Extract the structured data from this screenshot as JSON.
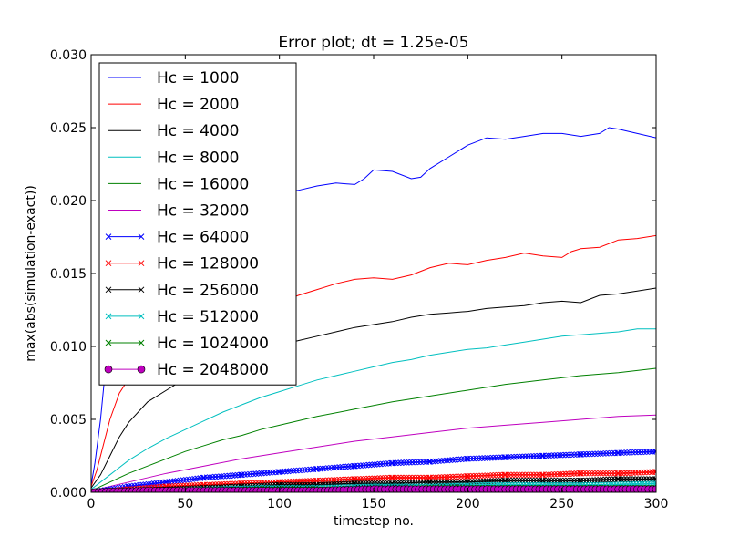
{
  "chart_data": {
    "type": "line",
    "title": "Error plot; dt = 1.25e-05",
    "xlabel": "timestep no.",
    "ylabel": "max(abs(simulation-exact))",
    "xlim": [
      0,
      300
    ],
    "ylim": [
      0,
      0.03
    ],
    "x_ticks": [
      "0",
      "50",
      "100",
      "150",
      "200",
      "250",
      "300"
    ],
    "y_ticks": [
      "0.000",
      "0.005",
      "0.010",
      "0.015",
      "0.020",
      "0.025",
      "0.030"
    ],
    "grid": false,
    "legend_position": "upper-left",
    "series": [
      {
        "name": "Hc = 1000",
        "color": "#0000ff",
        "marker": "none",
        "points": [
          [
            0,
            0.0005
          ],
          [
            2,
            0.002
          ],
          [
            5,
            0.005
          ],
          [
            8,
            0.009
          ],
          [
            10,
            0.012
          ],
          [
            15,
            0.014
          ],
          [
            20,
            0.015
          ],
          [
            30,
            0.0165
          ],
          [
            40,
            0.0175
          ],
          [
            50,
            0.0185
          ],
          [
            60,
            0.019
          ],
          [
            70,
            0.0195
          ],
          [
            80,
            0.0198
          ],
          [
            90,
            0.0202
          ],
          [
            100,
            0.0205
          ],
          [
            110,
            0.0207
          ],
          [
            120,
            0.021
          ],
          [
            130,
            0.0212
          ],
          [
            140,
            0.0211
          ],
          [
            145,
            0.0215
          ],
          [
            150,
            0.0221
          ],
          [
            160,
            0.022
          ],
          [
            170,
            0.0215
          ],
          [
            175,
            0.0216
          ],
          [
            180,
            0.0222
          ],
          [
            190,
            0.023
          ],
          [
            200,
            0.0238
          ],
          [
            210,
            0.0243
          ],
          [
            220,
            0.0242
          ],
          [
            230,
            0.0244
          ],
          [
            240,
            0.0246
          ],
          [
            250,
            0.0246
          ],
          [
            260,
            0.0244
          ],
          [
            270,
            0.0246
          ],
          [
            275,
            0.025
          ],
          [
            280,
            0.0249
          ],
          [
            290,
            0.0246
          ],
          [
            300,
            0.0243
          ]
        ]
      },
      {
        "name": "Hc = 2000",
        "color": "#ff0000",
        "marker": "none",
        "points": [
          [
            0,
            0.0004
          ],
          [
            3,
            0.0015
          ],
          [
            6,
            0.003
          ],
          [
            10,
            0.005
          ],
          [
            15,
            0.0068
          ],
          [
            20,
            0.0078
          ],
          [
            30,
            0.0092
          ],
          [
            40,
            0.0102
          ],
          [
            50,
            0.011
          ],
          [
            60,
            0.0115
          ],
          [
            70,
            0.012
          ],
          [
            80,
            0.0125
          ],
          [
            90,
            0.0128
          ],
          [
            100,
            0.013
          ],
          [
            110,
            0.0135
          ],
          [
            120,
            0.0139
          ],
          [
            130,
            0.0143
          ],
          [
            140,
            0.0146
          ],
          [
            150,
            0.0147
          ],
          [
            160,
            0.0146
          ],
          [
            170,
            0.0149
          ],
          [
            180,
            0.0154
          ],
          [
            190,
            0.0157
          ],
          [
            200,
            0.0156
          ],
          [
            210,
            0.0159
          ],
          [
            220,
            0.0161
          ],
          [
            230,
            0.0164
          ],
          [
            240,
            0.0162
          ],
          [
            250,
            0.0161
          ],
          [
            255,
            0.0165
          ],
          [
            260,
            0.0167
          ],
          [
            270,
            0.0168
          ],
          [
            280,
            0.0173
          ],
          [
            290,
            0.0174
          ],
          [
            300,
            0.0176
          ]
        ]
      },
      {
        "name": "Hc = 4000",
        "color": "#000000",
        "marker": "none",
        "points": [
          [
            0,
            0.0003
          ],
          [
            5,
            0.0012
          ],
          [
            10,
            0.0025
          ],
          [
            15,
            0.0038
          ],
          [
            20,
            0.0048
          ],
          [
            30,
            0.0062
          ],
          [
            40,
            0.007
          ],
          [
            50,
            0.0078
          ],
          [
            60,
            0.0085
          ],
          [
            70,
            0.009
          ],
          [
            80,
            0.0095
          ],
          [
            90,
            0.0098
          ],
          [
            100,
            0.0101
          ],
          [
            110,
            0.0104
          ],
          [
            120,
            0.0107
          ],
          [
            130,
            0.011
          ],
          [
            140,
            0.0113
          ],
          [
            150,
            0.0115
          ],
          [
            160,
            0.0117
          ],
          [
            170,
            0.012
          ],
          [
            180,
            0.0122
          ],
          [
            190,
            0.0123
          ],
          [
            200,
            0.0124
          ],
          [
            210,
            0.0126
          ],
          [
            220,
            0.0127
          ],
          [
            230,
            0.0128
          ],
          [
            240,
            0.013
          ],
          [
            250,
            0.0131
          ],
          [
            260,
            0.013
          ],
          [
            270,
            0.0135
          ],
          [
            280,
            0.0136
          ],
          [
            290,
            0.0138
          ],
          [
            300,
            0.014
          ]
        ]
      },
      {
        "name": "Hc = 8000",
        "color": "#00bfbf",
        "marker": "none",
        "points": [
          [
            0,
            0.0002
          ],
          [
            10,
            0.0012
          ],
          [
            20,
            0.0022
          ],
          [
            30,
            0.003
          ],
          [
            40,
            0.0037
          ],
          [
            50,
            0.0043
          ],
          [
            60,
            0.0049
          ],
          [
            70,
            0.0055
          ],
          [
            80,
            0.006
          ],
          [
            90,
            0.0065
          ],
          [
            100,
            0.0069
          ],
          [
            110,
            0.0073
          ],
          [
            120,
            0.0077
          ],
          [
            130,
            0.008
          ],
          [
            140,
            0.0083
          ],
          [
            150,
            0.0086
          ],
          [
            160,
            0.0089
          ],
          [
            170,
            0.0091
          ],
          [
            180,
            0.0094
          ],
          [
            190,
            0.0096
          ],
          [
            200,
            0.0098
          ],
          [
            210,
            0.0099
          ],
          [
            220,
            0.0101
          ],
          [
            230,
            0.0103
          ],
          [
            240,
            0.0105
          ],
          [
            250,
            0.0107
          ],
          [
            260,
            0.0108
          ],
          [
            270,
            0.0109
          ],
          [
            280,
            0.011
          ],
          [
            290,
            0.0112
          ],
          [
            300,
            0.0112
          ]
        ]
      },
      {
        "name": "Hc = 16000",
        "color": "#008000",
        "marker": "none",
        "points": [
          [
            0,
            0.0001
          ],
          [
            10,
            0.0007
          ],
          [
            20,
            0.0013
          ],
          [
            30,
            0.0018
          ],
          [
            40,
            0.0023
          ],
          [
            50,
            0.0028
          ],
          [
            60,
            0.0032
          ],
          [
            70,
            0.0036
          ],
          [
            80,
            0.0039
          ],
          [
            90,
            0.0043
          ],
          [
            100,
            0.0046
          ],
          [
            120,
            0.0052
          ],
          [
            140,
            0.0057
          ],
          [
            160,
            0.0062
          ],
          [
            180,
            0.0066
          ],
          [
            200,
            0.007
          ],
          [
            220,
            0.0074
          ],
          [
            240,
            0.0077
          ],
          [
            260,
            0.008
          ],
          [
            280,
            0.0082
          ],
          [
            300,
            0.0085
          ]
        ]
      },
      {
        "name": "Hc = 32000",
        "color": "#bf00bf",
        "marker": "none",
        "points": [
          [
            0,
            0.0001
          ],
          [
            10,
            0.0004
          ],
          [
            20,
            0.0007
          ],
          [
            40,
            0.0013
          ],
          [
            60,
            0.0018
          ],
          [
            80,
            0.0023
          ],
          [
            100,
            0.0027
          ],
          [
            120,
            0.0031
          ],
          [
            140,
            0.0035
          ],
          [
            160,
            0.0038
          ],
          [
            180,
            0.0041
          ],
          [
            200,
            0.0044
          ],
          [
            220,
            0.0046
          ],
          [
            240,
            0.0048
          ],
          [
            260,
            0.005
          ],
          [
            280,
            0.0052
          ],
          [
            300,
            0.0053
          ]
        ]
      },
      {
        "name": "Hc = 64000",
        "color": "#0000ff",
        "marker": "x",
        "points": [
          [
            0,
            0.0
          ],
          [
            20,
            0.0004
          ],
          [
            40,
            0.0007
          ],
          [
            60,
            0.001
          ],
          [
            80,
            0.0012
          ],
          [
            100,
            0.0014
          ],
          [
            120,
            0.0016
          ],
          [
            140,
            0.0018
          ],
          [
            160,
            0.002
          ],
          [
            180,
            0.0021
          ],
          [
            200,
            0.0023
          ],
          [
            220,
            0.0024
          ],
          [
            240,
            0.0025
          ],
          [
            260,
            0.0026
          ],
          [
            280,
            0.0027
          ],
          [
            300,
            0.0028
          ]
        ]
      },
      {
        "name": "Hc = 128000",
        "color": "#ff0000",
        "marker": "x",
        "points": [
          [
            0,
            0.0
          ],
          [
            20,
            0.0002
          ],
          [
            40,
            0.0004
          ],
          [
            60,
            0.0005
          ],
          [
            80,
            0.0006
          ],
          [
            100,
            0.0007
          ],
          [
            120,
            0.0008
          ],
          [
            140,
            0.0009
          ],
          [
            160,
            0.001
          ],
          [
            180,
            0.001
          ],
          [
            200,
            0.0011
          ],
          [
            220,
            0.0012
          ],
          [
            240,
            0.0012
          ],
          [
            260,
            0.0013
          ],
          [
            280,
            0.0013
          ],
          [
            300,
            0.0014
          ]
        ]
      },
      {
        "name": "Hc = 256000",
        "color": "#000000",
        "marker": "x",
        "points": [
          [
            0,
            0.0
          ],
          [
            20,
            0.0001
          ],
          [
            40,
            0.0002
          ],
          [
            60,
            0.0003
          ],
          [
            80,
            0.0004
          ],
          [
            100,
            0.0005
          ],
          [
            120,
            0.0005
          ],
          [
            140,
            0.0006
          ],
          [
            160,
            0.0006
          ],
          [
            180,
            0.0007
          ],
          [
            200,
            0.0007
          ],
          [
            220,
            0.0008
          ],
          [
            240,
            0.0008
          ],
          [
            260,
            0.0008
          ],
          [
            280,
            0.0009
          ],
          [
            300,
            0.0009
          ]
        ]
      },
      {
        "name": "Hc = 512000",
        "color": "#00bfbf",
        "marker": "x",
        "points": [
          [
            0,
            0.0
          ],
          [
            30,
            0.0001
          ],
          [
            60,
            0.0002
          ],
          [
            90,
            0.0003
          ],
          [
            120,
            0.0003
          ],
          [
            150,
            0.0004
          ],
          [
            180,
            0.0004
          ],
          [
            210,
            0.0005
          ],
          [
            240,
            0.0005
          ],
          [
            270,
            0.0005
          ],
          [
            300,
            0.0006
          ]
        ]
      },
      {
        "name": "Hc = 1024000",
        "color": "#008000",
        "marker": "x",
        "points": [
          [
            0,
            0.0
          ],
          [
            30,
            0.0001
          ],
          [
            60,
            0.0001
          ],
          [
            90,
            0.0002
          ],
          [
            120,
            0.0002
          ],
          [
            150,
            0.0002
          ],
          [
            180,
            0.0003
          ],
          [
            210,
            0.0003
          ],
          [
            240,
            0.0003
          ],
          [
            270,
            0.0003
          ],
          [
            300,
            0.0003
          ]
        ]
      },
      {
        "name": "Hc = 2048000",
        "color": "#bf00bf",
        "marker": "o",
        "points": [
          [
            0,
            0.0
          ],
          [
            30,
            0.0001
          ],
          [
            60,
            0.0001
          ],
          [
            90,
            0.0001
          ],
          [
            120,
            0.0001
          ],
          [
            150,
            0.0002
          ],
          [
            180,
            0.0002
          ],
          [
            210,
            0.0002
          ],
          [
            240,
            0.0002
          ],
          [
            270,
            0.0002
          ],
          [
            300,
            0.0002
          ]
        ]
      }
    ]
  }
}
